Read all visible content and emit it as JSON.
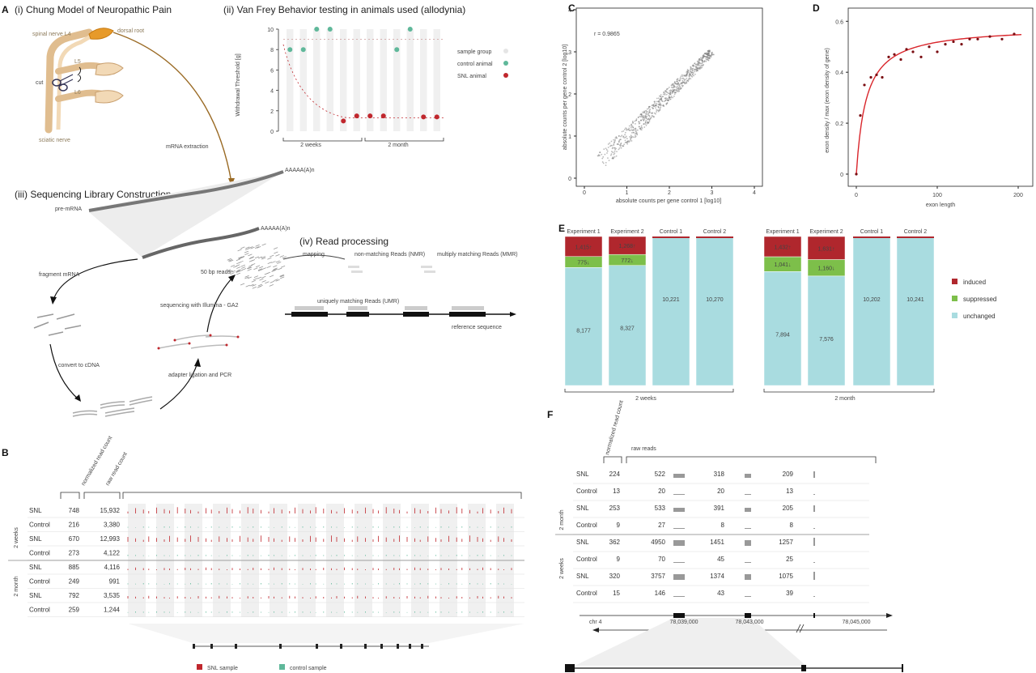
{
  "panelA": {
    "letter": "A",
    "i_title": "(i) Chung Model of Neuropathic Pain",
    "ii_title": "(ii) Van Frey Behavior testing in animals used (allodynia)",
    "iii_title": "(iii) Sequencing Library Construction",
    "iv_title": "(iv) Read processing",
    "anatomy": {
      "spinal": "spinal nerve L4",
      "dorsal": "dorsal root",
      "l5": "L5",
      "l6": "L6",
      "cut": "cut",
      "sciatic": "sciatic nerve"
    },
    "mrna_extraction": "mRNA extraction",
    "premrna": "pre-mRNA",
    "polya": "AAAAA(A)n",
    "fragment": "fragment mRNA",
    "convert": "convert to cDNA",
    "adapter": "adapter ligation and PCR",
    "sequencing": "sequencing with Illumina - GA2",
    "reads50": "50 bp reads",
    "mapping": "mapping",
    "nmr": "non-matching Reads (NMR)",
    "mmr": "multiply matching Reads (MMR)",
    "umr": "uniquely matching Reads (UMR)",
    "refseq": "reference sequence",
    "legend": {
      "group": "sample group",
      "control": "control animal",
      "snl": "SNL animal"
    },
    "ylabel": "Withdrawal Threshold [g]",
    "group_labels": [
      "2 weeks",
      "2 month"
    ]
  },
  "panelB": {
    "letter": "B",
    "hdr_norm": "normalized read count",
    "hdr_raw": "raw read count",
    "group_labels": [
      "2 weeks",
      "2 month"
    ],
    "rows": [
      {
        "label": "SNL",
        "norm": "748",
        "raw": "15,932",
        "type": "snl"
      },
      {
        "label": "Control",
        "norm": "216",
        "raw": "3,380",
        "type": "ctrl"
      },
      {
        "label": "SNL",
        "norm": "670",
        "raw": "12,993",
        "type": "snl"
      },
      {
        "label": "Control",
        "norm": "273",
        "raw": "4,122",
        "type": "ctrl"
      },
      {
        "label": "SNL",
        "norm": "885",
        "raw": "4,116",
        "type": "snl"
      },
      {
        "label": "Control",
        "norm": "249",
        "raw": "991",
        "type": "ctrl"
      },
      {
        "label": "SNL",
        "norm": "792",
        "raw": "3,535",
        "type": "snl"
      },
      {
        "label": "Control",
        "norm": "259",
        "raw": "1,244",
        "type": "ctrl"
      }
    ],
    "legend": {
      "snl": "SNL sample",
      "ctrl": "control sample"
    }
  },
  "panelC": {
    "letter": "C",
    "r_text": "r = 0.9865",
    "xlabel": "absolute counts per gene control 1 [log10]",
    "ylabel": "absolute counts per gene control 2 [log10]"
  },
  "panelD": {
    "letter": "D",
    "xlabel": "exon length",
    "ylabel": "exon density / max (exon density of gene)"
  },
  "panelE": {
    "letter": "E",
    "legend": {
      "induced": "induced",
      "suppressed": "suppressed",
      "unchanged": "unchanged"
    },
    "group_labels": [
      "2 weeks",
      "2 month"
    ]
  },
  "panelF": {
    "letter": "F",
    "hdr_norm": "normalized read count",
    "hdr_raw": "raw reads",
    "group_labels": [
      "2 month",
      "2 weeks"
    ],
    "rows": [
      {
        "label": "SNL",
        "norm": "224",
        "r1": "522",
        "r2": "318",
        "r3": "209",
        "type": "snl"
      },
      {
        "label": "Control",
        "norm": "13",
        "r1": "20",
        "r2": "20",
        "r3": "13",
        "type": "ctrl"
      },
      {
        "label": "SNL",
        "norm": "253",
        "r1": "533",
        "r2": "391",
        "r3": "205",
        "type": "snl"
      },
      {
        "label": "Control",
        "norm": "9",
        "r1": "27",
        "r2": "8",
        "r3": "8",
        "type": "ctrl"
      },
      {
        "label": "SNL",
        "norm": "362",
        "r1": "4950",
        "r2": "1451",
        "r3": "1257",
        "type": "snl"
      },
      {
        "label": "Control",
        "norm": "9",
        "r1": "70",
        "r2": "45",
        "r3": "25",
        "type": "ctrl"
      },
      {
        "label": "SNL",
        "norm": "320",
        "r1": "3757",
        "r2": "1374",
        "r3": "1075",
        "type": "snl"
      },
      {
        "label": "Control",
        "norm": "15",
        "r1": "146",
        "r2": "43",
        "r3": "39",
        "type": "ctrl"
      }
    ],
    "chrom": "chr 4",
    "coords": [
      "78,039,000",
      "78,043,000",
      "78,045,000"
    ]
  },
  "colors": {
    "snl": "#c0272d",
    "ctrl": "#5fb89a",
    "induced": "#b0272d",
    "suppressed": "#7dbf4a",
    "unchanged": "#a9dce0",
    "nerve": "#e8c79c",
    "bg": "#f0f0f0"
  },
  "chart_data": [
    {
      "type": "scatter",
      "id": "vonfrey",
      "ylabel": "Withdrawal Threshold [g]",
      "ylim": [
        0,
        10
      ],
      "yticks": [
        0,
        2,
        4,
        6,
        8,
        10
      ],
      "categories": [
        "2 weeks",
        "2 month"
      ],
      "series": [
        {
          "name": "control animal",
          "points": [
            [
              1,
              8
            ],
            [
              2,
              8
            ],
            [
              3,
              10
            ],
            [
              4,
              10
            ],
            [
              9,
              8
            ],
            [
              10,
              10
            ]
          ]
        },
        {
          "name": "SNL animal",
          "points": [
            [
              5,
              1
            ],
            [
              6,
              1.5
            ],
            [
              7,
              1.5
            ],
            [
              8,
              1.5
            ],
            [
              11,
              1.4
            ],
            [
              12,
              1.4
            ]
          ]
        }
      ]
    },
    {
      "type": "scatter",
      "id": "correlation",
      "annotation": "r = 0.9865",
      "xlabel": "absolute counts per gene control 1 [log10]",
      "ylabel": "absolute counts per gene control 2 [log10]",
      "xlim": [
        0,
        4
      ],
      "ylim": [
        0,
        4
      ],
      "xticks": [
        0,
        1,
        2,
        3,
        4
      ],
      "yticks": [
        0,
        1,
        2,
        3,
        4
      ]
    },
    {
      "type": "scatter",
      "id": "exon_density",
      "xlabel": "exon length",
      "ylabel": "exon density / max (exon density of gene)",
      "xlim": [
        0,
        210
      ],
      "ylim": [
        0,
        0.62
      ],
      "xticks": [
        0,
        100,
        200
      ],
      "yticks": [
        0,
        0.2,
        0.4,
        0.6
      ],
      "x": [
        0,
        5,
        10,
        18,
        25,
        32,
        40,
        47,
        55,
        62,
        70,
        80,
        90,
        100,
        110,
        120,
        130,
        140,
        150,
        165,
        180,
        195
      ],
      "y": [
        0.0,
        0.23,
        0.35,
        0.38,
        0.39,
        0.38,
        0.46,
        0.47,
        0.45,
        0.49,
        0.48,
        0.46,
        0.5,
        0.48,
        0.51,
        0.52,
        0.51,
        0.53,
        0.53,
        0.54,
        0.53,
        0.55
      ]
    },
    {
      "type": "bar",
      "id": "expression_changes",
      "categories": [
        "Experiment 1",
        "Experiment 2",
        "Control 1",
        "Control 2",
        "Experiment 1",
        "Experiment 2",
        "Control 1",
        "Control 2"
      ],
      "groups": [
        "2 weeks",
        "2 weeks",
        "2 weeks",
        "2 weeks",
        "2 month",
        "2 month",
        "2 month",
        "2 month"
      ],
      "series": [
        {
          "name": "induced",
          "values": [
            1415,
            1268,
            0,
            0,
            1432,
            1631,
            0,
            0
          ],
          "labels": [
            "1,415↑",
            "1,268↑",
            "",
            "",
            "1,432↑",
            "1,631↑",
            "",
            ""
          ]
        },
        {
          "name": "suppressed",
          "values": [
            775,
            772,
            0,
            0,
            1041,
            1160,
            0,
            0
          ],
          "labels": [
            "775↓",
            "772↓",
            "",
            "",
            "1,041↓",
            "1,160↓",
            "",
            ""
          ]
        },
        {
          "name": "unchanged",
          "values": [
            8177,
            8327,
            10221,
            10270,
            7894,
            7576,
            10202,
            10241
          ],
          "labels": [
            "8,177",
            "8,327",
            "10,221",
            "10,270",
            "7,894",
            "7,576",
            "10,202",
            "10,241"
          ]
        }
      ]
    }
  ]
}
